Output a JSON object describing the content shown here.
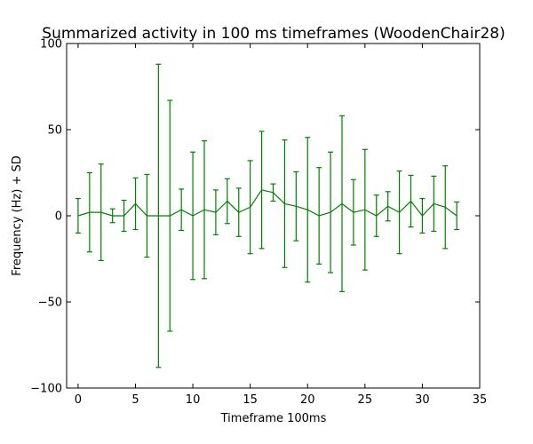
{
  "chart_data": {
    "type": "line",
    "title": "Summarized activity in 100 ms timeframes (WoodenChair28)",
    "xlabel": "Timeframe 100ms",
    "ylabel": "Frequency (Hz) + SD",
    "xlim": [
      -1,
      35
    ],
    "ylim": [
      -100,
      100
    ],
    "x_ticks": [
      0,
      5,
      10,
      15,
      20,
      25,
      30,
      35
    ],
    "y_ticks": [
      -100,
      -50,
      0,
      50,
      100
    ],
    "x_tick_labels": [
      "0",
      "5",
      "10",
      "15",
      "20",
      "25",
      "30",
      "35"
    ],
    "y_tick_labels": [
      "−100",
      "−50",
      "0",
      "50",
      "100"
    ],
    "grid": false,
    "colors": {
      "series": "#008000",
      "axes": "#000000",
      "background": "#ffffff"
    },
    "series": [
      {
        "x": [
          0,
          1,
          2,
          3,
          4,
          5,
          6,
          7,
          8,
          9,
          10,
          11,
          12,
          13,
          14,
          15,
          16,
          17,
          18,
          19,
          20,
          21,
          22,
          23,
          24,
          25,
          26,
          27,
          28,
          29,
          30,
          31,
          32,
          33
        ],
        "values": [
          0,
          2,
          2,
          0,
          0,
          7,
          0,
          0,
          0,
          3.5,
          0,
          3.5,
          2,
          8.5,
          2,
          5,
          15,
          13.5,
          7,
          5.5,
          3.5,
          0,
          2,
          7,
          2,
          3.5,
          0,
          5.5,
          2,
          8.5,
          0,
          7,
          5,
          0
        ],
        "sd": [
          10,
          23,
          28,
          4,
          9,
          15,
          24,
          88,
          67,
          12,
          37,
          40,
          13,
          13,
          14,
          27,
          34,
          5,
          37,
          20,
          42,
          28,
          35,
          51,
          19,
          35,
          12,
          8.5,
          24,
          15,
          10,
          16,
          24,
          8
        ]
      }
    ]
  }
}
